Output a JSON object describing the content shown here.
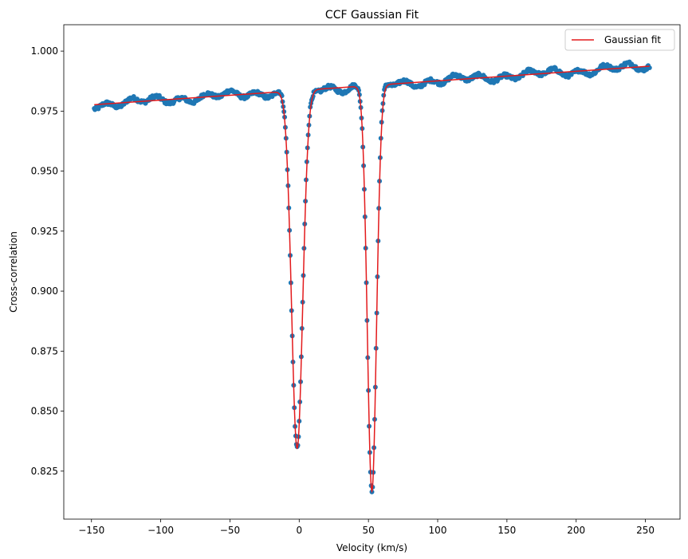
{
  "chart_data": {
    "type": "scatter",
    "title": "CCF Gaussian Fit",
    "xlabel": "Velocity (km/s)",
    "ylabel": "Cross-correlation",
    "xlim": [
      -170,
      275
    ],
    "ylim": [
      0.805,
      1.011
    ],
    "xticks": [
      -150,
      -100,
      -50,
      0,
      50,
      100,
      150,
      200,
      250
    ],
    "xtick_labels": [
      "−150",
      "−100",
      "−50",
      "0",
      "50",
      "100",
      "150",
      "200",
      "250"
    ],
    "yticks": [
      0.825,
      0.85,
      0.875,
      0.9,
      0.925,
      0.95,
      0.975,
      1.0
    ],
    "ytick_labels": [
      "0.825",
      "0.850",
      "0.875",
      "0.900",
      "0.925",
      "0.950",
      "0.975",
      "1.000"
    ],
    "grid": false,
    "legend": {
      "position": "upper-right",
      "entries": [
        {
          "label": "Gaussian fit",
          "color": "#e31a1c"
        }
      ]
    },
    "series": [
      {
        "kind": "scatter",
        "color": "#1f77b4",
        "x_range": [
          -148,
          253
        ],
        "components": {
          "baseline": {
            "intercept": 0.9836,
            "slope": 4e-05
          },
          "dips": [
            {
              "center": -1.5,
              "depth": 0.149,
              "sigma": 4.0
            },
            {
              "center": 52.5,
              "depth": 0.169,
              "sigma": 3.3
            }
          ]
        },
        "noise_amplitude": 0.0015
      },
      {
        "kind": "line",
        "name": "Gaussian fit",
        "color": "#e31a1c",
        "x_range": [
          -148,
          253
        ],
        "components": {
          "baseline": {
            "intercept": 0.9836,
            "slope": 4e-05
          },
          "dips": [
            {
              "center": -1.5,
              "depth": 0.149,
              "sigma": 4.0
            },
            {
              "center": 52.5,
              "depth": 0.169,
              "sigma": 3.3
            }
          ]
        }
      }
    ]
  }
}
